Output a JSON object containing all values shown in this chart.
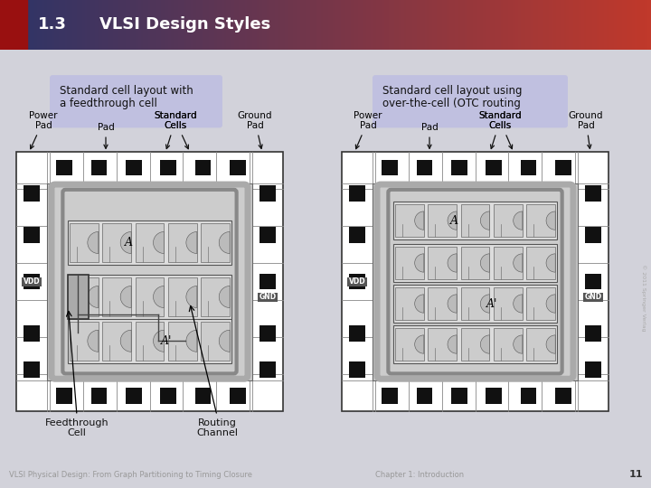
{
  "title_number": "1.3",
  "title_text": "VLSI Design Styles",
  "header_grad_left": "#2d3468",
  "header_grad_right": "#c0392b",
  "header_red_strip": "#991010",
  "body_bg": "#d2d2da",
  "label_box_color": "#c0c0e0",
  "label1_line1": "Standard cell layout with",
  "label1_line2": "a feedthrough cell",
  "label2_line1": "Standard cell layout using",
  "label2_line2": "over-the-cell (OTC routing",
  "footer_left": "VLSI Physical Design: From Graph Partitioning to Timing Closure",
  "footer_center": "Chapter 1: Introduction",
  "footer_num": "11",
  "watermark": "© 2011 Springer Verlag",
  "chip_outer_fill": "#ffffff",
  "chip_outer_edge": "#333333",
  "chip_inner_fill": "#cccccc",
  "chip_ring1_color": "#aaaaaa",
  "chip_ring2_color": "#888888",
  "cell_row_fill": "#dddddd",
  "cell_fill": "#cccccc",
  "cell_notch_fill": "#bbbbbb",
  "pad_color": "#111111",
  "vdd_gnd_fill": "#555555",
  "ft_cell_fill": "#aaaaaa"
}
